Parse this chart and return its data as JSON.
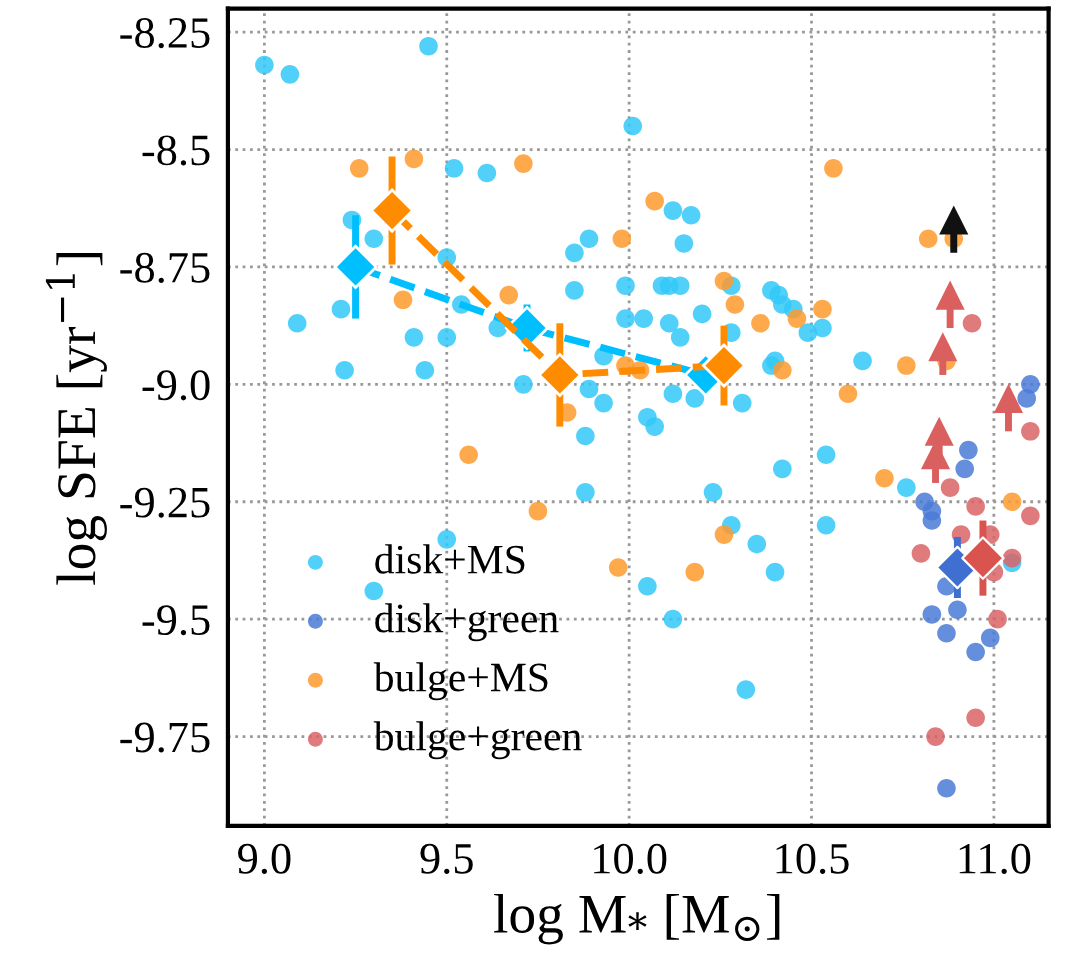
{
  "chart_data": {
    "type": "scatter",
    "xlabel": "log M$_{*}$ [M$_{⊙}$]",
    "ylabel": "log SFE [yr$^{−1}$]",
    "xlim": [
      8.9,
      11.15
    ],
    "ylim": [
      -9.94,
      -8.2
    ],
    "xticks": [
      {
        "value": 9,
        "label": "9.0"
      },
      9.5,
      {
        "value": 10,
        "label": "10.0"
      },
      10.5,
      {
        "value": 11,
        "label": "11.0"
      }
    ],
    "yticks": [
      -8.25,
      -8.5,
      -8.75,
      {
        "value": -9,
        "label": "-9.0"
      },
      -9.25,
      -9.5,
      -9.75
    ],
    "grid": true,
    "legend": "bottom left",
    "marker": "circle",
    "series": [
      {
        "name": "disk+MS",
        "color": "#33c8f8",
        "x": [
          9.0,
          9.07,
          9.45,
          10.01,
          9.52,
          9.61,
          9.24,
          9.3,
          9.5,
          9.85,
          9.89,
          9.85,
          9.54,
          9.64,
          9.5,
          9.41,
          9.21,
          9.09,
          9.22,
          9.44,
          9.71,
          9.89,
          9.93,
          9.88,
          9.99,
          9.99,
          9.93,
          10.12,
          10.17,
          10.15,
          10.09,
          10.11,
          10.14,
          10.04,
          10.11,
          10.14,
          10.2,
          10.28,
          10.28,
          10.39,
          10.41,
          10.42,
          10.45,
          10.49,
          10.53,
          10.64,
          10.39,
          10.4,
          10.12,
          10.18,
          10.31,
          10.05,
          10.07,
          9.88,
          9.5,
          9.3,
          10.54,
          10.42,
          10.23,
          10.76,
          10.28,
          10.54,
          10.35,
          10.05,
          10.4,
          10.12,
          10.32,
          11.05
        ],
        "values": [
          -8.32,
          -8.34,
          -8.28,
          -8.45,
          -8.54,
          -8.55,
          -8.65,
          -8.69,
          -8.73,
          -8.72,
          -8.69,
          -8.8,
          -8.83,
          -8.88,
          -8.9,
          -8.9,
          -8.84,
          -8.87,
          -8.97,
          -8.97,
          -9.0,
          -9.01,
          -9.04,
          -9.11,
          -8.79,
          -8.86,
          -8.94,
          -8.63,
          -8.64,
          -8.7,
          -8.79,
          -8.79,
          -8.79,
          -8.86,
          -8.87,
          -8.9,
          -8.85,
          -8.79,
          -8.89,
          -8.8,
          -8.81,
          -8.83,
          -8.84,
          -8.89,
          -8.88,
          -8.95,
          -8.96,
          -8.95,
          -9.02,
          -9.03,
          -9.04,
          -9.07,
          -9.09,
          -9.23,
          -9.33,
          -9.44,
          -9.15,
          -9.18,
          -9.23,
          -9.22,
          -9.3,
          -9.3,
          -9.34,
          -9.43,
          -9.4,
          -9.5,
          -9.65,
          -9.38
        ]
      },
      {
        "name": "disk+green",
        "color": "#4a7bd6",
        "x": [
          10.93,
          10.92,
          10.81,
          10.83,
          10.83,
          10.87,
          10.9,
          10.83,
          10.87,
          10.95,
          10.99,
          10.87,
          11.1,
          11.09
        ],
        "values": [
          -9.14,
          -9.18,
          -9.25,
          -9.27,
          -9.29,
          -9.43,
          -9.48,
          -9.49,
          -9.53,
          -9.57,
          -9.54,
          -9.86,
          -9.0,
          -9.03
        ]
      },
      {
        "name": "bulge+MS",
        "color": "#ff9a2e",
        "x": [
          9.26,
          9.41,
          9.71,
          9.67,
          9.38,
          9.98,
          9.99,
          9.83,
          10.56,
          10.07,
          10.82,
          10.26,
          10.29,
          10.36,
          10.46,
          10.53,
          10.42,
          10.76,
          10.87,
          10.6,
          10.03,
          9.56,
          9.75,
          9.97,
          10.7,
          10.26,
          10.18,
          11.05,
          10.89
        ],
        "values": [
          -8.54,
          -8.52,
          -8.53,
          -8.81,
          -8.82,
          -8.69,
          -8.96,
          -9.06,
          -8.54,
          -8.61,
          -8.69,
          -8.78,
          -8.83,
          -8.87,
          -8.86,
          -8.84,
          -8.97,
          -8.96,
          -8.95,
          -9.02,
          -8.97,
          -9.15,
          -9.27,
          -9.39,
          -9.2,
          -9.32,
          -9.4,
          -9.25,
          -8.69
        ]
      },
      {
        "name": "bulge+green",
        "color": "#d96466",
        "x": [
          10.88,
          10.95,
          10.8,
          10.91,
          10.99,
          11.05,
          11.0,
          11.1,
          11.1,
          11.01,
          10.95,
          10.84,
          10.94
        ],
        "values": [
          -9.22,
          -9.26,
          -9.36,
          -9.32,
          -9.32,
          -9.37,
          -9.4,
          -9.28,
          -9.1,
          -9.5,
          -9.71,
          -9.75,
          -8.87
        ]
      },
      {
        "type": "line",
        "marker": "diamond",
        "line_style": "dashed",
        "color": "#00bfff",
        "x": [
          9.25,
          9.72,
          10.21
        ],
        "values": [
          -8.75,
          -8.88,
          -8.98
        ],
        "errors": [
          0.11,
          0.05,
          0.03
        ]
      },
      {
        "type": "line",
        "marker": "diamond",
        "line_style": "dashed",
        "color": "#ff8c00",
        "x": [
          9.35,
          9.81,
          10.26
        ],
        "values": [
          -8.63,
          -8.98,
          -8.96
        ],
        "errors": [
          0.115,
          0.11,
          0.085
        ]
      },
      {
        "type": "scatter",
        "marker": "diamond",
        "color": "#3f6fd0",
        "x": [
          10.9
        ],
        "values": [
          -9.39
        ],
        "errors": [
          0.065
        ]
      },
      {
        "type": "scatter",
        "marker": "diamond",
        "color": "#d9534f",
        "x": [
          10.97
        ],
        "values": [
          -9.37
        ],
        "errors": [
          0.08
        ]
      },
      {
        "type": "scatter",
        "marker": "triangle",
        "color": "#d9605f",
        "x": [
          10.88,
          10.86,
          11.04,
          10.85,
          10.84
        ],
        "values": [
          -8.81,
          -8.92,
          -9.03,
          -9.1,
          -9.15
        ],
        "errors": [
          [
            -8.88,
            -8.81
          ],
          [
            -8.98,
            -8.92
          ],
          [
            -9.1,
            -9.03
          ],
          [
            -9.16,
            -9.1
          ],
          [
            -9.21,
            -9.15
          ]
        ]
      },
      {
        "type": "scatter",
        "marker": "triangle",
        "color": "#111111",
        "x": [
          10.89
        ],
        "values": [
          -8.65
        ],
        "errors": [
          [
            -8.72,
            -8.65
          ]
        ]
      }
    ]
  }
}
